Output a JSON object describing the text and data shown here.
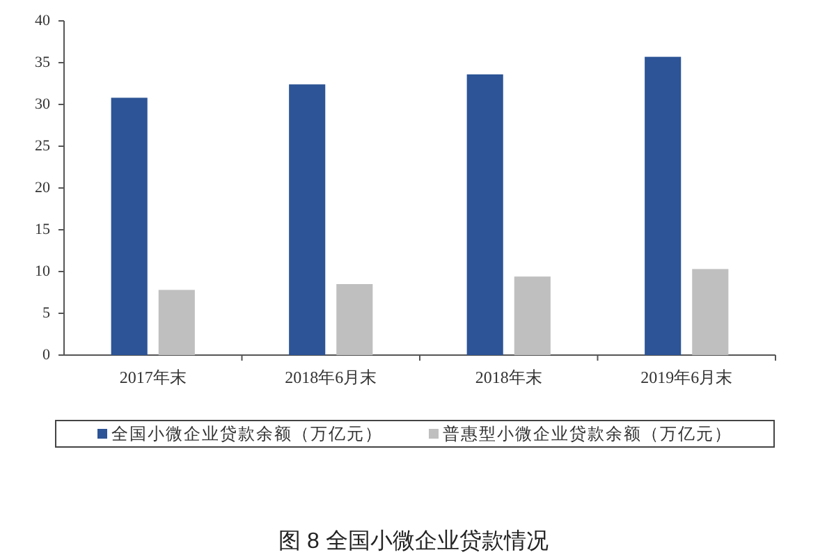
{
  "chart_data": {
    "type": "bar",
    "title": "图 8 全国小微企业贷款情况",
    "categories": [
      "2017年末",
      "2018年6月末",
      "2018年末",
      "2019年6月末"
    ],
    "series": [
      {
        "name": "全国小微企业贷款余额（万亿元）",
        "color": "#2c5496",
        "values": [
          30.8,
          32.4,
          33.6,
          35.7
        ]
      },
      {
        "name": "普惠型小微企业贷款余额（万亿元）",
        "color": "#bfbfbf",
        "values": [
          7.8,
          8.5,
          9.4,
          10.3
        ]
      }
    ],
    "ylim": [
      0,
      40
    ],
    "yticks": [
      0,
      5,
      10,
      15,
      20,
      25,
      30,
      35,
      40
    ],
    "legend": "bottom"
  }
}
